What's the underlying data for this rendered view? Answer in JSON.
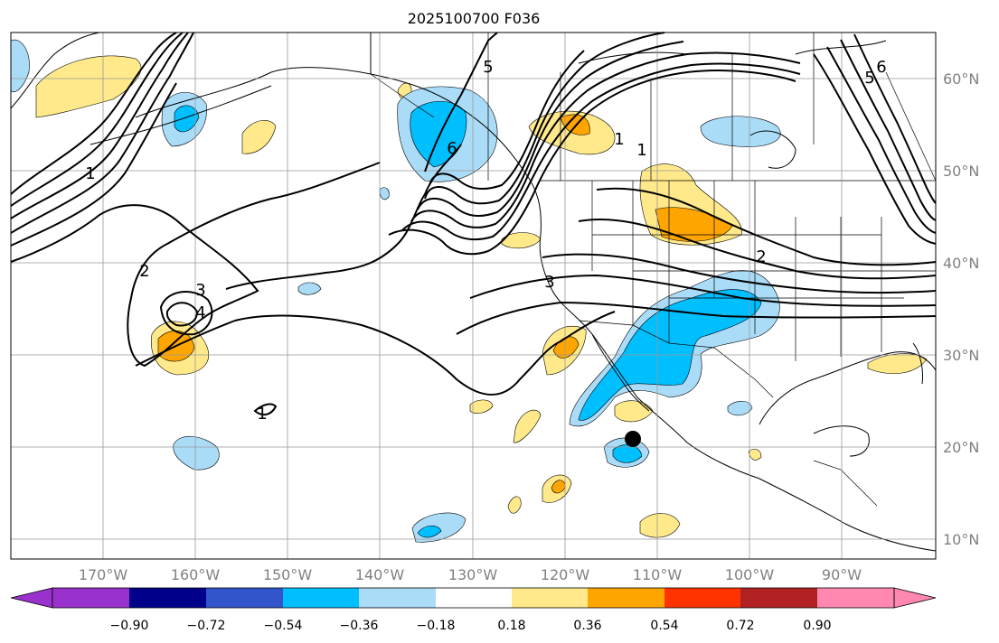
{
  "title": "2025100700 F036",
  "colors": {
    "land_line": "#000000",
    "grid_line": "#999999",
    "contour": "#000000",
    "tick_text": "#808080"
  },
  "lon_ticks": [
    "170°W",
    "160°W",
    "150°W",
    "140°W",
    "130°W",
    "120°W",
    "110°W",
    "100°W",
    "90°W"
  ],
  "lat_ticks": [
    "60°N",
    "50°N",
    "40°N",
    "30°N",
    "20°N",
    "10°N"
  ],
  "contour_labels": [
    "1",
    "1",
    "1",
    "2",
    "2",
    "3",
    "3",
    "4",
    "5",
    "5",
    "6",
    "6",
    "1"
  ],
  "colorbar": {
    "under_color": "#9932cc",
    "over_color": "#ff88b0",
    "colors": [
      "#00008b",
      "#3355cc",
      "#00bfff",
      "#aadcf8",
      "#ffffff",
      "#ffe98a",
      "#ffa500",
      "#ff3300",
      "#b22222"
    ],
    "labels": [
      "−0.90",
      "−0.72",
      "−0.54",
      "−0.36",
      "−0.18",
      "0.18",
      "0.36",
      "0.54",
      "0.72",
      "0.90"
    ],
    "values": [
      -0.9,
      -0.72,
      -0.54,
      -0.36,
      -0.18,
      0.18,
      0.36,
      0.54,
      0.72,
      0.9
    ]
  },
  "marker": {
    "name": "storm-center",
    "lon": -112.7,
    "lat": 21.0,
    "color": "#000000"
  }
}
